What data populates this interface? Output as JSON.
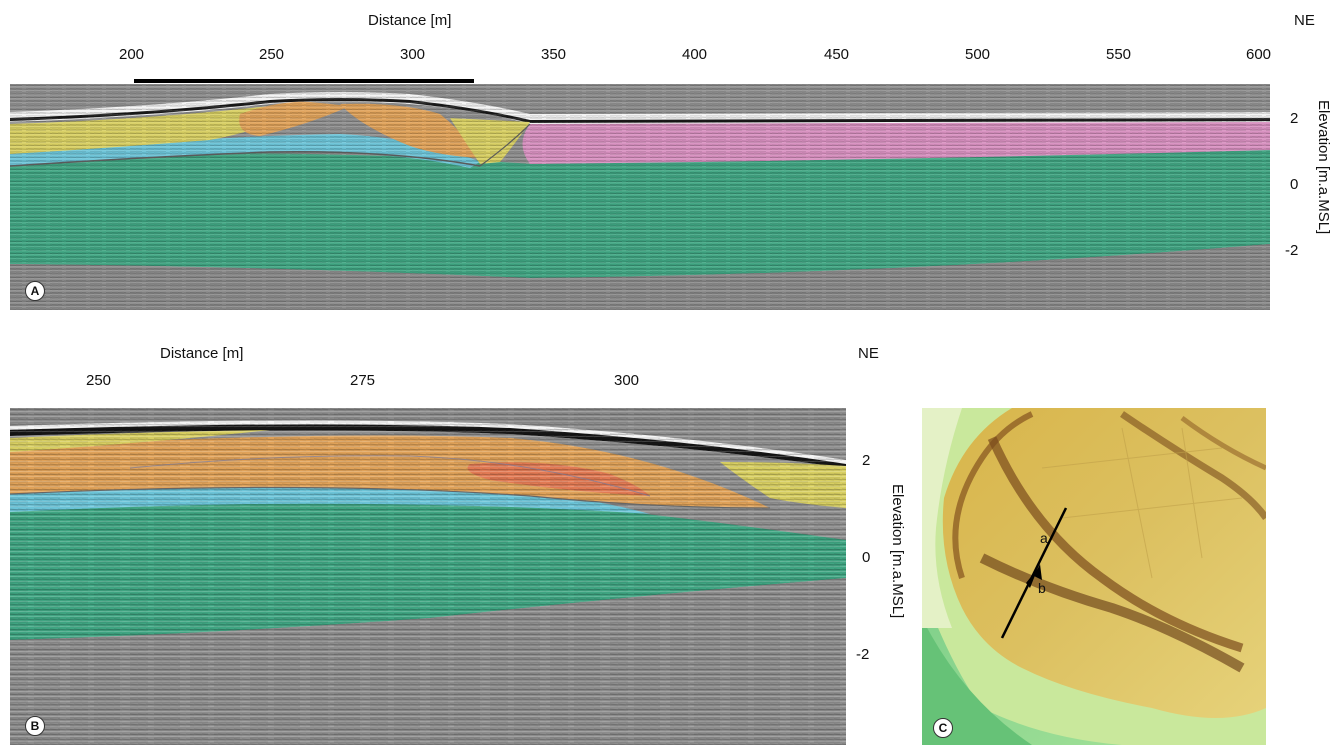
{
  "panel_a": {
    "x_title": "Distance [m]",
    "direction": "NE",
    "x_ticks": [
      "200",
      "250",
      "300",
      "350",
      "400",
      "450",
      "500",
      "550",
      "600"
    ],
    "y_title": "Elevation [m.a.MSL]",
    "y_ticks": [
      "2",
      "0",
      "-2"
    ],
    "label": "A"
  },
  "panel_b": {
    "x_title": "Distance [m]",
    "direction": "NE",
    "x_ticks": [
      "250",
      "275",
      "300"
    ],
    "y_title": "Elevation [m.a.MSL]",
    "y_ticks": [
      "2",
      "0",
      "-2"
    ],
    "label": "B"
  },
  "panel_c": {
    "label": "C",
    "point_a": "a",
    "point_b": "b"
  },
  "colors": {
    "gpr_background": "#8f8f8f",
    "unit_yellow": "#d8cf62",
    "unit_orange": "#e0a259",
    "unit_red": "#e27a54",
    "unit_blue": "#6cc4d8",
    "unit_green": "#3fa582",
    "unit_pink": "#d890c0"
  }
}
